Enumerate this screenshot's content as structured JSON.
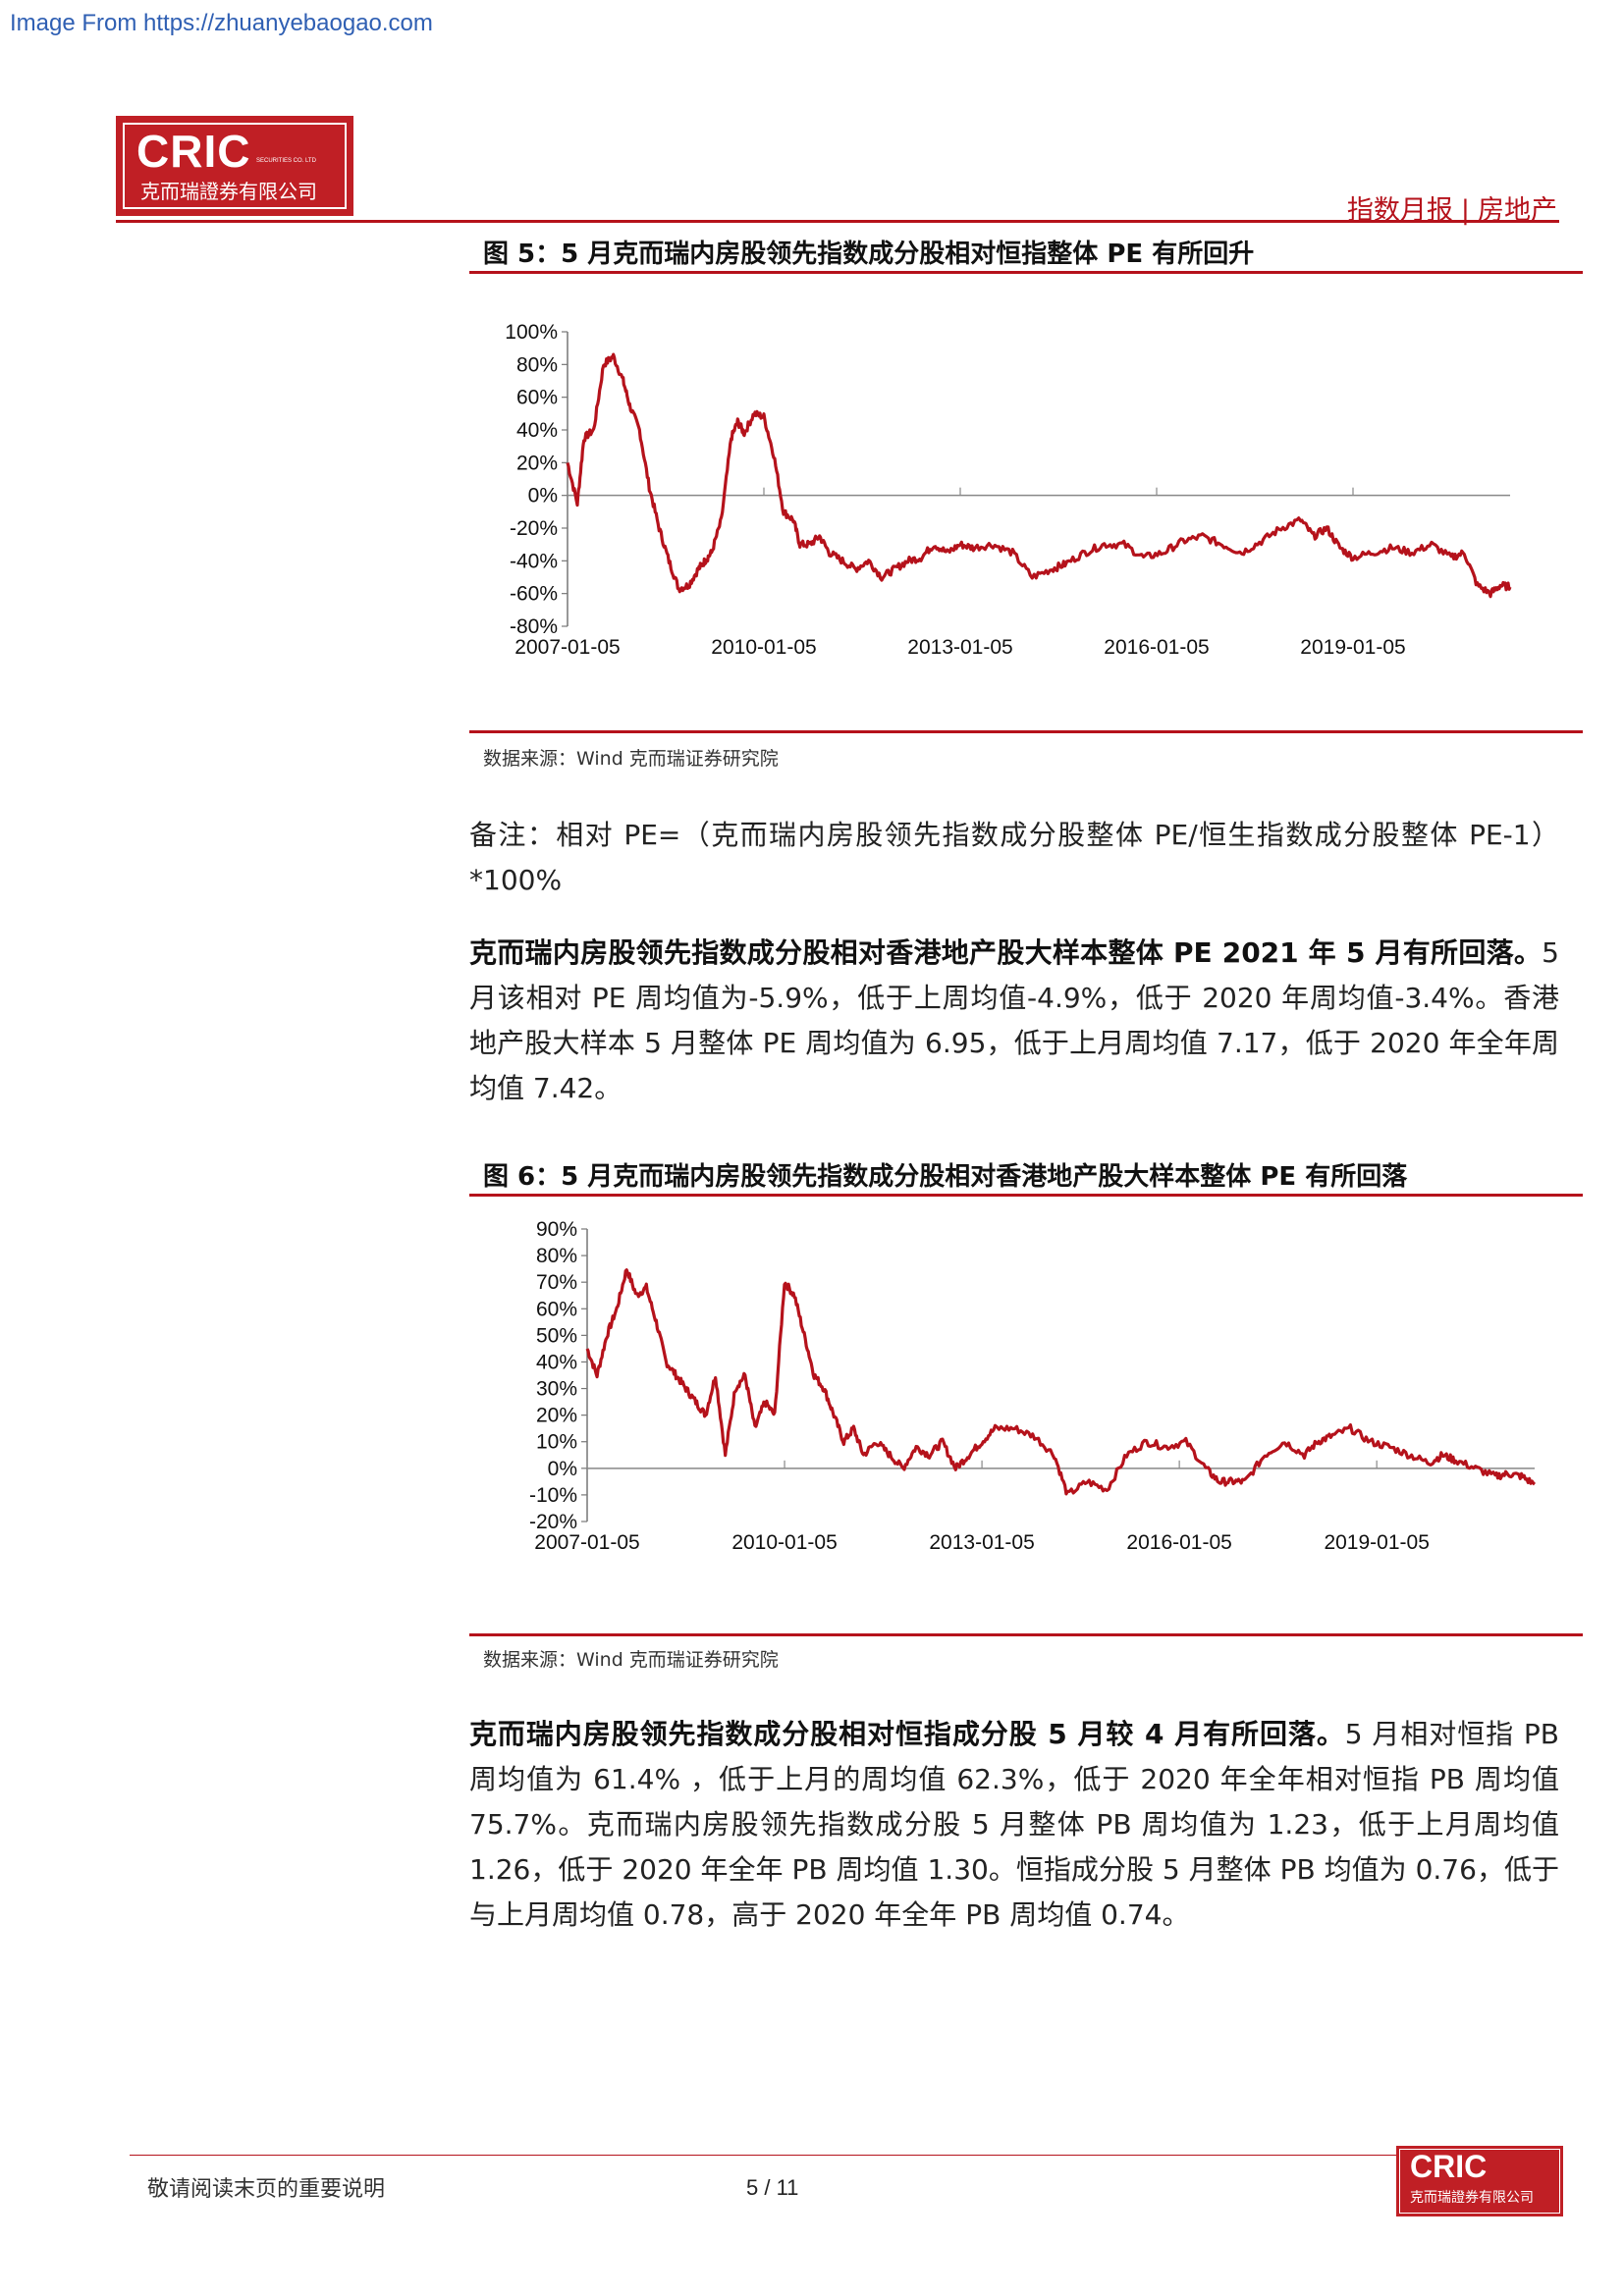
{
  "watermark": "Image From https://zhuanyebaogao.com",
  "logo": {
    "word": "CRIC",
    "name": "克而瑞證券有限公司",
    "tiny": "SECURITIES CO. LTD"
  },
  "header": {
    "category": "指数月报",
    "sector": "房地产"
  },
  "figure5": {
    "title": "图 5：5 月克而瑞内房股领先指数成分股相对恒指整体 PE 有所回升",
    "source": "数据来源：Wind  克而瑞证券研究院"
  },
  "note": "备注：相对 PE=（克而瑞内房股领先指数成分股整体 PE/恒生指数成分股整体 PE-1）*100%",
  "para1": {
    "bold": "克而瑞内房股领先指数成分股相对香港地产股大样本整体 PE 2021 年 5 月有所回落。",
    "text": "5 月该相对 PE 周均值为-5.9%，低于上周均值-4.9%，低于 2020 年周均值-3.4%。香港地产股大样本 5 月整体 PE 周均值为 6.95，低于上月周均值 7.17，低于 2020 年全年周均值 7.42。"
  },
  "figure6": {
    "title": "图 6：5 月克而瑞内房股领先指数成分股相对香港地产股大样本整体 PE 有所回落",
    "source": "数据来源：Wind  克而瑞证券研究院"
  },
  "para2": {
    "bold": "克而瑞内房股领先指数成分股相对恒指成分股 5 月较 4 月有所回落。",
    "text": "5 月相对恒指 PB 周均值为 61.4% ，低于上月的周均值 62.3%，低于 2020 年全年相对恒指 PB 周均值 75.7%。克而瑞内房股领先指数成分股 5 月整体 PB 周均值为 1.23，低于上月周均值 1.26，低于 2020 年全年 PB 周均值 1.30。恒指成分股 5 月整体 PB 均值为 0.76，低于与上月周均值 0.78，高于 2020 年全年 PB 周均值 0.74。"
  },
  "footer": {
    "note": "敬请阅读末页的重要说明",
    "page": "5 / 11"
  },
  "chart_data": [
    {
      "type": "line",
      "title": "图 5：5 月克而瑞内房股领先指数成分股相对恒指整体 PE 有所回升",
      "xlabel": "",
      "ylabel": "",
      "x_ticks": [
        "2007-01-05",
        "2010-01-05",
        "2013-01-05",
        "2016-01-05",
        "2019-01-05"
      ],
      "y_ticks": [
        "100%",
        "80%",
        "60%",
        "40%",
        "20%",
        "0%",
        "-20%",
        "-40%",
        "-60%",
        "-80%"
      ],
      "ylim": [
        -80,
        100
      ],
      "xlim": [
        2007.0,
        2021.4
      ],
      "color": "#b5121b",
      "series": [
        {
          "x": [
            2007.0,
            2007.15,
            2007.25,
            2007.4,
            2007.55,
            2007.7,
            2007.85,
            2007.95,
            2008.1,
            2008.25,
            2008.4,
            2008.55,
            2008.7,
            2008.85,
            2009.0,
            2009.1,
            2009.2,
            2009.35,
            2009.5,
            2009.6,
            2009.7,
            2009.85,
            2010.0,
            2010.15,
            2010.3,
            2010.45,
            2010.55,
            2010.7,
            2010.85,
            2011.0,
            2011.2,
            2011.4,
            2011.6,
            2011.8,
            2012.0,
            2012.2,
            2012.4,
            2012.6,
            2012.8,
            2013.0,
            2013.2,
            2013.5,
            2013.8,
            2014.1,
            2014.4,
            2014.6,
            2014.9,
            2015.2,
            2015.5,
            2015.8,
            2016.1,
            2016.4,
            2016.7,
            2017.0,
            2017.3,
            2017.6,
            2017.9,
            2018.2,
            2018.4,
            2018.6,
            2018.8,
            2019.0,
            2019.3,
            2019.6,
            2019.9,
            2020.2,
            2020.5,
            2020.7,
            2020.9,
            2021.1,
            2021.25,
            2021.4
          ],
          "y": [
            20,
            -5,
            35,
            40,
            80,
            85,
            70,
            55,
            40,
            5,
            -20,
            -40,
            -57,
            -55,
            -45,
            -40,
            -35,
            -15,
            35,
            45,
            38,
            50,
            48,
            25,
            -10,
            -15,
            -30,
            -30,
            -25,
            -35,
            -40,
            -45,
            -40,
            -50,
            -45,
            -40,
            -38,
            -30,
            -35,
            -30,
            -32,
            -30,
            -35,
            -50,
            -45,
            -42,
            -35,
            -30,
            -30,
            -38,
            -35,
            -28,
            -25,
            -30,
            -35,
            -28,
            -20,
            -15,
            -25,
            -20,
            -32,
            -38,
            -35,
            -32,
            -35,
            -30,
            -38,
            -35,
            -55,
            -60,
            -55,
            -56
          ]
        }
      ]
    },
    {
      "type": "line",
      "title": "图 6：5 月克而瑞内房股领先指数成分股相对香港地产股大样本整体 PE 有所回落",
      "xlabel": "",
      "ylabel": "",
      "x_ticks": [
        "2007-01-05",
        "2010-01-05",
        "2013-01-05",
        "2016-01-05",
        "2019-01-05"
      ],
      "y_ticks": [
        "90%",
        "80%",
        "70%",
        "60%",
        "50%",
        "40%",
        "30%",
        "20%",
        "10%",
        "0%",
        "-10%",
        "-20%"
      ],
      "ylim": [
        -20,
        90
      ],
      "xlim": [
        2007.0,
        2021.4
      ],
      "color": "#b5121b",
      "series": [
        {
          "x": [
            2007.0,
            2007.15,
            2007.3,
            2007.45,
            2007.6,
            2007.75,
            2007.9,
            2008.05,
            2008.2,
            2008.35,
            2008.5,
            2008.65,
            2008.8,
            2008.95,
            2009.1,
            2009.25,
            2009.4,
            2009.55,
            2009.7,
            2009.85,
            2010.0,
            2010.15,
            2010.3,
            2010.45,
            2010.6,
            2010.75,
            2010.9,
            2011.05,
            2011.2,
            2011.4,
            2011.6,
            2011.8,
            2012.0,
            2012.2,
            2012.4,
            2012.6,
            2012.8,
            2013.0,
            2013.2,
            2013.5,
            2013.8,
            2014.1,
            2014.3,
            2014.6,
            2014.9,
            2015.2,
            2015.5,
            2015.8,
            2016.1,
            2016.4,
            2016.6,
            2016.8,
            2017.0,
            2017.3,
            2017.6,
            2017.9,
            2018.1,
            2018.3,
            2018.6,
            2018.9,
            2019.2,
            2019.5,
            2019.8,
            2020.0,
            2020.2,
            2020.5,
            2020.8,
            2021.0,
            2021.2,
            2021.4
          ],
          "y": [
            45,
            35,
            50,
            60,
            75,
            65,
            68,
            55,
            40,
            35,
            30,
            25,
            20,
            35,
            5,
            30,
            35,
            15,
            25,
            20,
            70,
            65,
            50,
            35,
            30,
            20,
            10,
            15,
            5,
            10,
            5,
            0,
            8,
            5,
            10,
            0,
            5,
            10,
            15,
            15,
            12,
            5,
            -10,
            -5,
            -8,
            5,
            10,
            8,
            10,
            0,
            -5,
            -5,
            -5,
            5,
            10,
            5,
            10,
            12,
            15,
            10,
            8,
            5,
            2,
            5,
            3,
            0,
            -3,
            -2,
            -3,
            -6
          ]
        }
      ]
    }
  ]
}
